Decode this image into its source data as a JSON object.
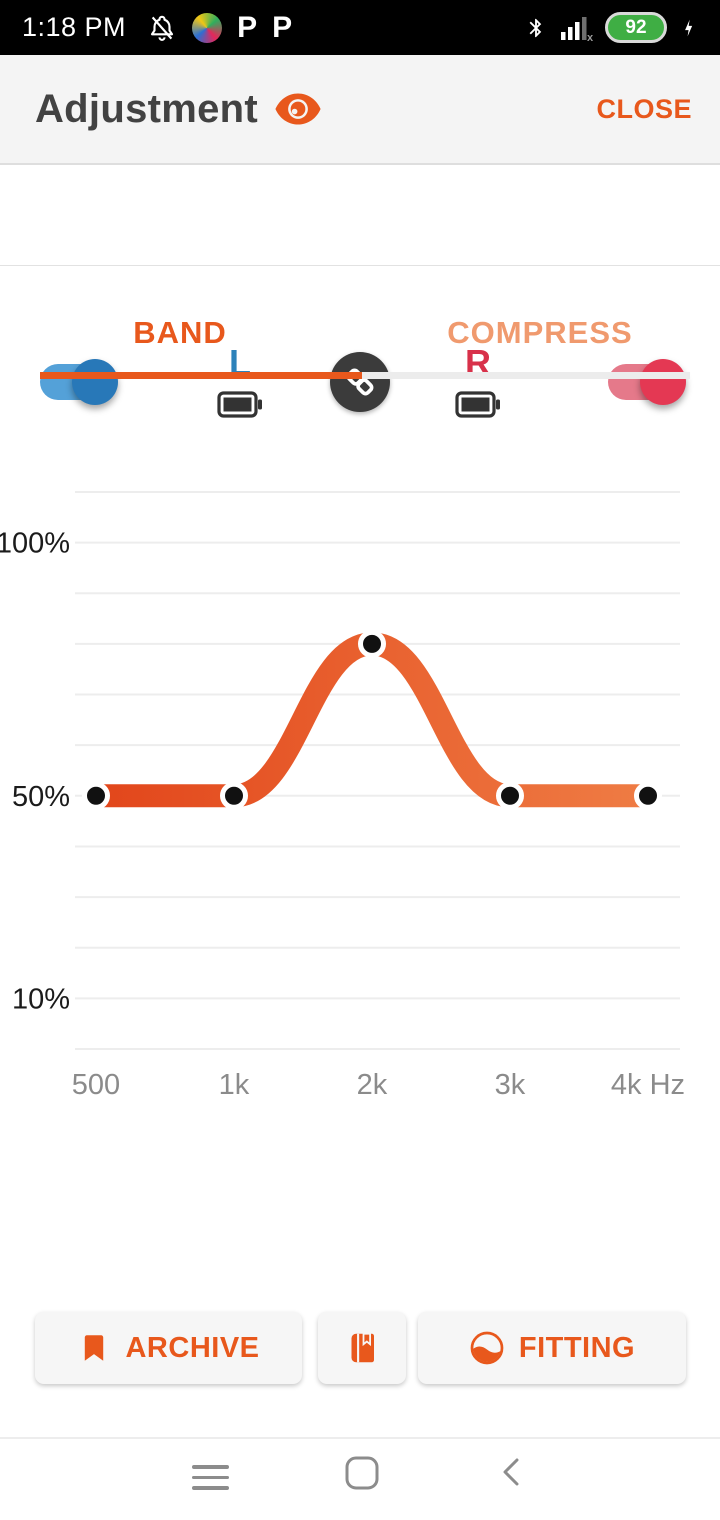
{
  "status_bar": {
    "time": "1:18 PM",
    "battery_percent": "92",
    "left_icons": [
      "notifications-off-icon",
      "app-color-circle-icon",
      "p-app-icon",
      "p-app-icon"
    ],
    "right_icons": [
      "bluetooth-icon",
      "signal-no-internet-icon",
      "battery-pill",
      "charging-bolt-icon"
    ]
  },
  "header": {
    "title": "Adjustment",
    "title_icon": "eye-icon",
    "close_label": "CLOSE"
  },
  "device_row": {
    "left_label": "L",
    "right_label": "R",
    "left_toggle_on": true,
    "right_toggle_on": true,
    "left_battery": "full",
    "right_battery": "full",
    "center_icon": "link-icon"
  },
  "tabs": {
    "band": "BAND",
    "compress": "COMPRESS",
    "active": "BAND"
  },
  "chart_data": {
    "type": "line",
    "title": "",
    "x_categories": [
      "500",
      "1k",
      "2k",
      "3k",
      "4k"
    ],
    "x_axis_suffix": "Hz",
    "values": [
      50,
      50,
      80,
      50,
      50
    ],
    "unit": "%",
    "yticks": [
      {
        "label": "100%",
        "value": 100
      },
      {
        "label": "50%",
        "value": 50
      },
      {
        "label": "10%",
        "value": 10
      }
    ],
    "ylim": [
      0,
      110
    ],
    "grid": true,
    "legend": "none",
    "band_gradient": [
      "#e2461b",
      "#ef7c44"
    ],
    "point_color": "#111111",
    "point_ring_color": "#ffffff",
    "gridline_color": "#ededed"
  },
  "actions": {
    "archive_label": "ARCHIVE",
    "archive_icon": "bookmark-icon",
    "book_icon": "book-icon",
    "fitting_label": "FITTING",
    "fitting_icon": "wave-circle-icon"
  },
  "nav_bar": {
    "icons": [
      "recents-icon",
      "home-icon",
      "back-icon"
    ]
  },
  "colors": {
    "accent_orange": "#e8581c",
    "left_blue": "#2d82ba",
    "right_red": "#d8314a",
    "toggle_blue_track": "#54a1d8",
    "toggle_blue_thumb": "#2878b8",
    "toggle_red_track": "#e5798a",
    "toggle_red_thumb": "#e43853",
    "battery_green": "#3fae44"
  }
}
